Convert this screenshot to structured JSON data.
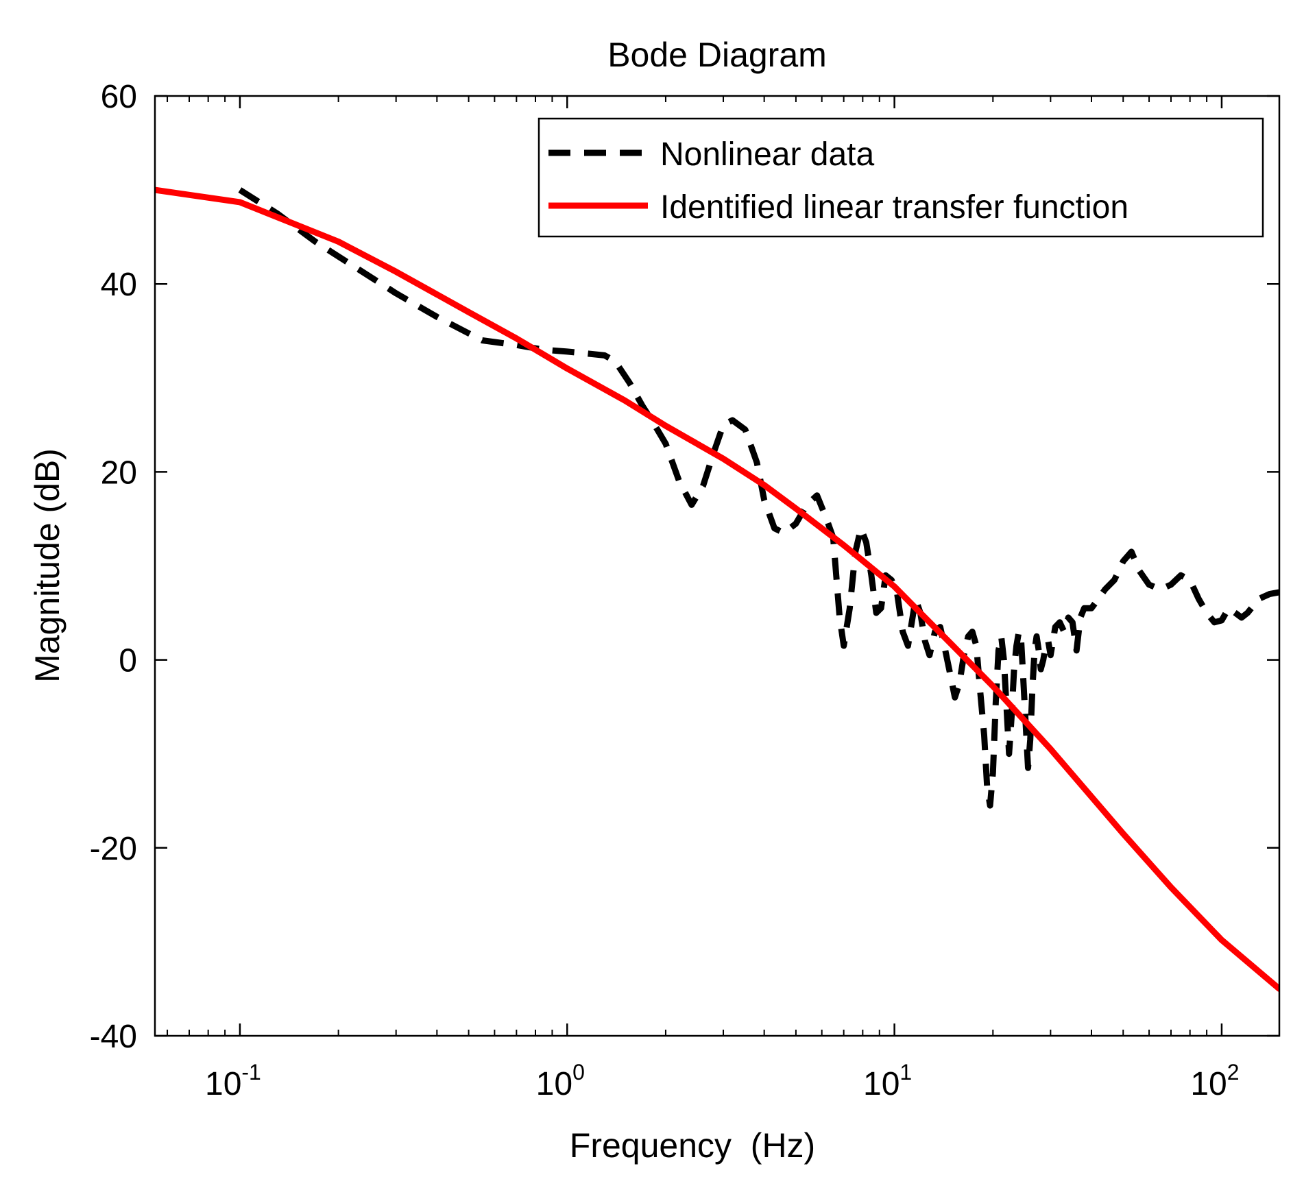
{
  "chart_data": {
    "type": "line",
    "title": "Bode Diagram",
    "xlabel": "Frequency  (Hz)",
    "ylabel": "Magnitude (dB)",
    "xscale": "log",
    "xlim": [
      0.055,
      150
    ],
    "ylim": [
      -40,
      60
    ],
    "xticks": [
      {
        "base": "10",
        "exp": "-1",
        "value": 0.1
      },
      {
        "base": "10",
        "exp": "0",
        "value": 1
      },
      {
        "base": "10",
        "exp": "1",
        "value": 10
      },
      {
        "base": "10",
        "exp": "2",
        "value": 100
      }
    ],
    "yticks": [
      {
        "label": "60",
        "value": 60
      },
      {
        "label": "40",
        "value": 40
      },
      {
        "label": "20",
        "value": 20
      },
      {
        "label": "0",
        "value": 0
      },
      {
        "label": "-20",
        "value": -20
      },
      {
        "label": "-40",
        "value": -40
      }
    ],
    "grid": false,
    "legend_position": "top-right",
    "series": [
      {
        "name": "Nonlinear data",
        "color": "#000000",
        "style": "dashed",
        "x": [
          0.1,
          0.13,
          0.17,
          0.22,
          0.3,
          0.4,
          0.55,
          0.7,
          0.85,
          1.0,
          1.15,
          1.3,
          1.4,
          1.55,
          1.7,
          1.85,
          2.0,
          2.2,
          2.4,
          2.6,
          2.8,
          3.0,
          3.2,
          3.5,
          3.8,
          4.0,
          4.3,
          4.6,
          5.0,
          5.4,
          5.8,
          6.2,
          6.5,
          6.8,
          7.0,
          7.3,
          7.6,
          7.9,
          8.2,
          8.5,
          8.8,
          9.1,
          9.4,
          9.8,
          10.2,
          10.6,
          11.0,
          11.3,
          11.6,
          12.0,
          12.4,
          12.8,
          13.3,
          13.8,
          14.3,
          14.8,
          15.3,
          15.8,
          16.3,
          16.8,
          17.3,
          17.8,
          18.3,
          18.8,
          19.2,
          19.6,
          20.0,
          20.4,
          20.8,
          21.2,
          21.6,
          22.0,
          22.4,
          22.8,
          23.2,
          23.6,
          24.0,
          24.4,
          24.8,
          25.2,
          25.6,
          26.0,
          26.4,
          26.8,
          27.2,
          27.6,
          28.0,
          28.5,
          29.0,
          29.5,
          30.0,
          31.0,
          32.0,
          33.0,
          34.0,
          35.0,
          36.0,
          37.0,
          38.0,
          40.0,
          42.0,
          44.0,
          47.0,
          50.0,
          53.0,
          56.0,
          60.0,
          65.0,
          70.0,
          75.0,
          80.0,
          85.0,
          90.0,
          95.0,
          100.0,
          105.0,
          110.0,
          115.0,
          120.0,
          130.0,
          140.0,
          150.0
        ],
        "y": [
          50,
          47.5,
          44.5,
          42,
          39,
          36.5,
          34,
          33.5,
          33,
          32.8,
          32.6,
          32.4,
          31.8,
          29.5,
          27,
          25,
          23,
          19,
          16.5,
          18.5,
          22,
          25,
          25.5,
          24.5,
          21,
          17,
          14,
          13.5,
          14.5,
          16.5,
          17.5,
          15,
          13,
          4.5,
          1.5,
          5.5,
          11.5,
          14,
          12.5,
          9,
          5,
          5.5,
          9,
          8.5,
          7,
          3,
          1.5,
          4,
          6.5,
          5,
          2,
          0.5,
          3,
          3.5,
          1,
          -1.5,
          -4,
          -2.5,
          0.5,
          2.5,
          3,
          1.5,
          -3.5,
          -8,
          -13.5,
          -15.5,
          -12,
          -4.5,
          1,
          2.5,
          0,
          -5,
          -10,
          -6,
          -1,
          1.5,
          3,
          2,
          -2.5,
          -7,
          -11.5,
          -8.5,
          -3,
          1,
          2.5,
          1,
          -1,
          0,
          1.5,
          2,
          0.5,
          3.5,
          4,
          3,
          4.5,
          4,
          1,
          4.5,
          5.5,
          5.5,
          6.5,
          7.5,
          8.5,
          10.5,
          11.5,
          9.5,
          8,
          7.5,
          8,
          9,
          8.5,
          6.5,
          5,
          4,
          4.2,
          5.5,
          5,
          4.5,
          5,
          6.5,
          7,
          7.2
        ]
      },
      {
        "name": "Identified linear transfer function",
        "color": "#ff0000",
        "style": "solid",
        "x": [
          0.055,
          0.1,
          0.2,
          0.3,
          0.5,
          0.7,
          1.0,
          1.5,
          2.0,
          3.0,
          4.0,
          5.0,
          7.0,
          10.0,
          12.0,
          15.0,
          20.0,
          30.0,
          50.0,
          70.0,
          100.0,
          150.0
        ],
        "y": [
          50,
          48.7,
          44.5,
          41.3,
          37,
          34.2,
          31,
          27.6,
          24.9,
          21.4,
          18.6,
          16.1,
          12.2,
          7.8,
          5,
          1.6,
          -2.8,
          -9.5,
          -18.5,
          -24.2,
          -29.8,
          -35
        ]
      }
    ]
  }
}
